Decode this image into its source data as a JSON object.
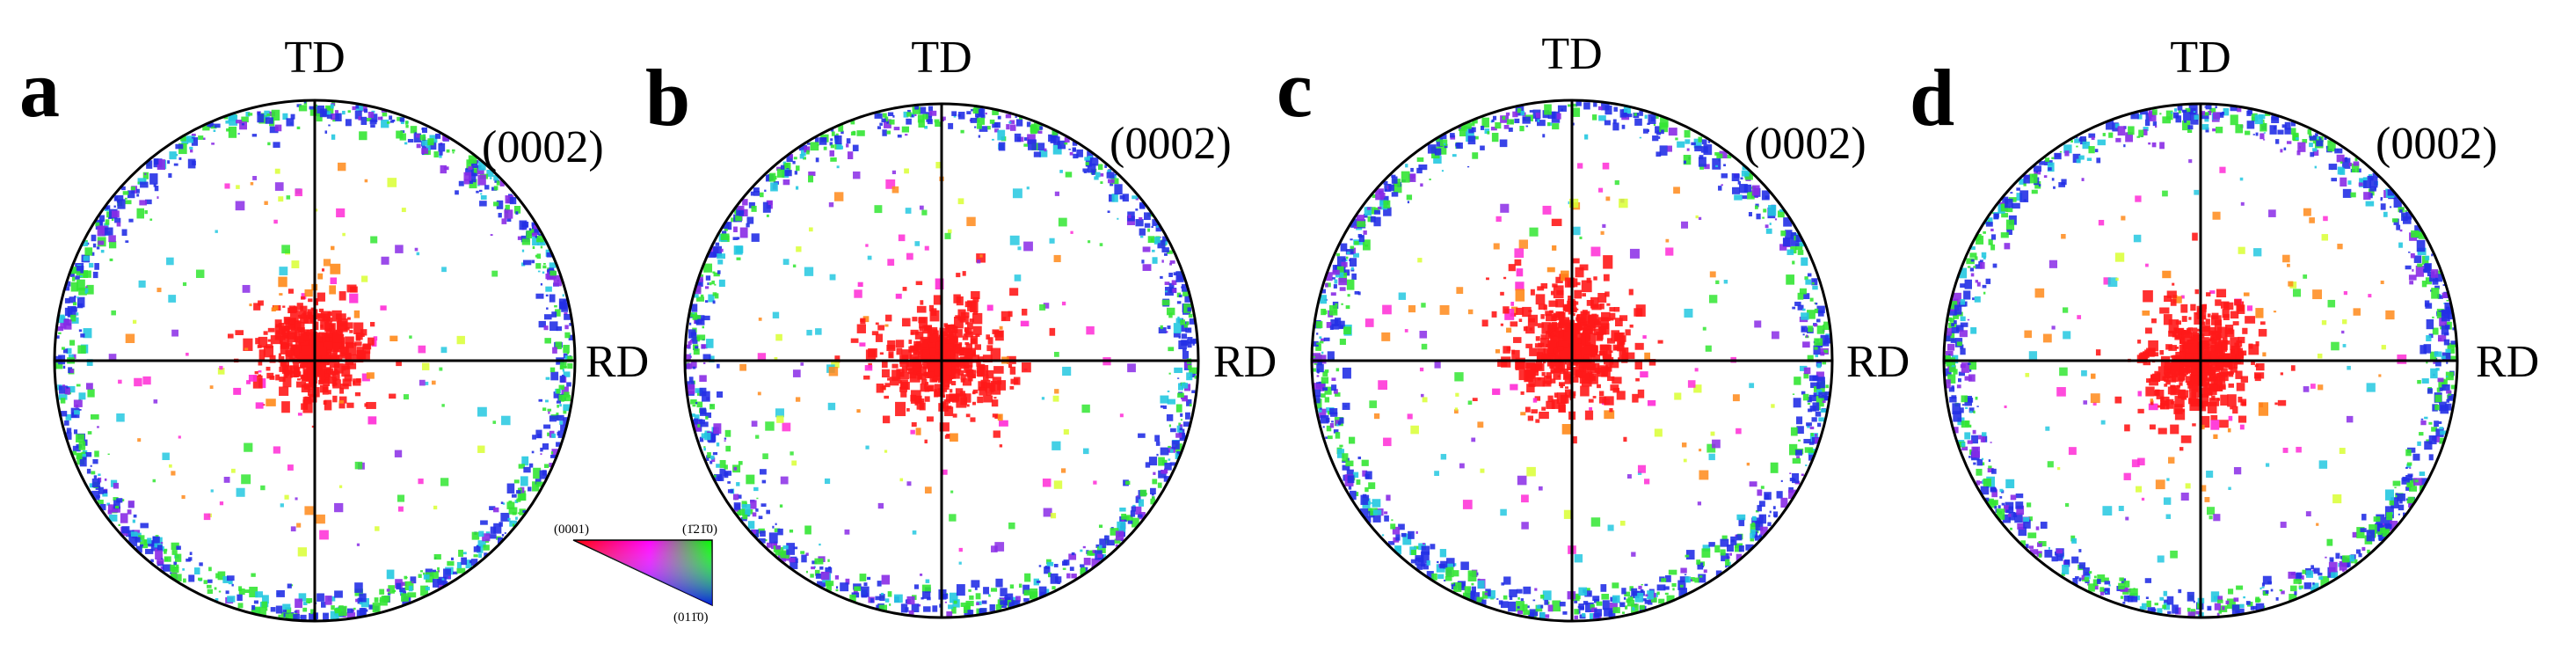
{
  "figure": {
    "panels": [
      {
        "letter": "a",
        "td_label": "TD",
        "rd_label": "RD",
        "plane_label": "(0002)"
      },
      {
        "letter": "b",
        "td_label": "TD",
        "rd_label": "RD",
        "plane_label": "(0002)"
      },
      {
        "letter": "c",
        "td_label": "TD",
        "rd_label": "RD",
        "plane_label": "(0002)"
      },
      {
        "letter": "d",
        "td_label": "TD",
        "rd_label": "RD",
        "plane_label": "(0002)"
      }
    ],
    "color_key": {
      "label_0001": "(0001)",
      "label_12bar10": "(1̄21̄0)",
      "label_011bar0": "(011̄0)"
    },
    "colors": {
      "basal": "#ff1a1a",
      "orange": "#ff8a1a",
      "magenta": "#ff2bd6",
      "blue": "#2330e6",
      "green": "#33e633",
      "cyan": "#24c8e0",
      "violet": "#8a2be6",
      "yellow": "#d9ff33",
      "line": "#000000"
    }
  }
}
